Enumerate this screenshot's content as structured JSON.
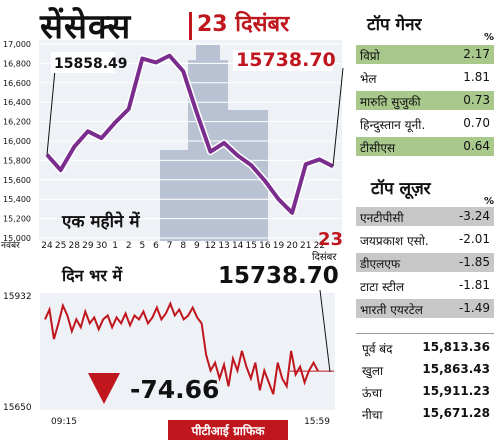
{
  "header": {
    "title": "सेंसेक्स",
    "date": "23 दिसंबर"
  },
  "top_gainers": {
    "heading": "टॉप गेनर",
    "pct_symbol": "%",
    "items": [
      {
        "name": "विप्रो",
        "value": "2.17"
      },
      {
        "name": "भेल",
        "value": "1.81"
      },
      {
        "name": "मारुति सुजुकी",
        "value": "0.73"
      },
      {
        "name": "हिन्दुस्तान यूनी.",
        "value": "0.70"
      },
      {
        "name": "टीसीएस",
        "value": "0.64"
      }
    ]
  },
  "top_losers": {
    "heading": "टॉप लूज़र",
    "pct_symbol": "%",
    "items": [
      {
        "name": "एनटीपीसी",
        "value": "-3.24"
      },
      {
        "name": "जयप्रकाश एसो.",
        "value": "-2.01"
      },
      {
        "name": "डीएलएफ",
        "value": "-1.85"
      },
      {
        "name": "टाटा स्टील",
        "value": "-1.81"
      },
      {
        "name": "भारती एयरटेल",
        "value": "-1.49"
      }
    ]
  },
  "stats": [
    {
      "label": "पूर्व बंद",
      "value": "15,813.36"
    },
    {
      "label": "खुला",
      "value": "15,863.43"
    },
    {
      "label": "ऊंचा",
      "value": "15,911.23"
    },
    {
      "label": "नीचा",
      "value": "15,671.28"
    }
  ],
  "credit": "पीटीआई ग्राफिक",
  "change": {
    "arrow": "down-triangle-icon",
    "value": "-74.66"
  },
  "colors": {
    "monthly_line": "#7b2d8e",
    "intraday_line": "#c0161d",
    "callout": "#c0161d",
    "gainer_bg": "#a9c98c",
    "loser_bg": "#c7c7c7"
  },
  "chart_data": [
    {
      "type": "line",
      "title": "एक महीने में",
      "month_label": "नवंबर",
      "end_label": {
        "day": "23",
        "month": "दिसंबर"
      },
      "ylim": [
        15000,
        17000
      ],
      "yticks": [
        "17,000",
        "16,800",
        "16,600",
        "16,400",
        "16,200",
        "16,000",
        "15,800",
        "15,600",
        "15,400",
        "15,200",
        "15,000"
      ],
      "categories": [
        "24",
        "25",
        "28",
        "29",
        "30",
        "1",
        "2",
        "5",
        "6",
        "7",
        "8",
        "9",
        "12",
        "13",
        "14",
        "15",
        "16",
        "19",
        "20",
        "21",
        "22",
        "23"
      ],
      "values": [
        15858.49,
        15700,
        15940,
        16100,
        16030,
        16190,
        16330,
        16850,
        16810,
        16880,
        16720,
        16290,
        15890,
        15980,
        15850,
        15750,
        15590,
        15400,
        15260,
        15760,
        15810,
        15738.7
      ],
      "annotations": [
        {
          "category": "24",
          "value": 15858.49,
          "label": "15858.49"
        },
        {
          "category": "23",
          "value": 15738.7,
          "label": "15738.70"
        }
      ]
    },
    {
      "type": "line",
      "title": "दिन भर में",
      "xlabels": [
        "09:15",
        "15:59"
      ],
      "ylim": [
        15650,
        15932
      ],
      "yticks": [
        "15932",
        "15650"
      ],
      "end_value": "15738.70",
      "values": [
        15870,
        15895,
        15820,
        15860,
        15905,
        15880,
        15840,
        15870,
        15850,
        15890,
        15860,
        15875,
        15845,
        15870,
        15880,
        15850,
        15875,
        15860,
        15885,
        15855,
        15880,
        15870,
        15890,
        15860,
        15875,
        15900,
        15870,
        15885,
        15910,
        15880,
        15895,
        15870,
        15880,
        15900,
        15875,
        15860,
        15780,
        15740,
        15760,
        15720,
        15755,
        15700,
        15770,
        15740,
        15790,
        15750,
        15720,
        15760,
        15690,
        15740,
        15710,
        15680,
        15760,
        15720,
        15700,
        15790,
        15730,
        15750,
        15710,
        15740,
        15760,
        15738.7
      ]
    }
  ]
}
